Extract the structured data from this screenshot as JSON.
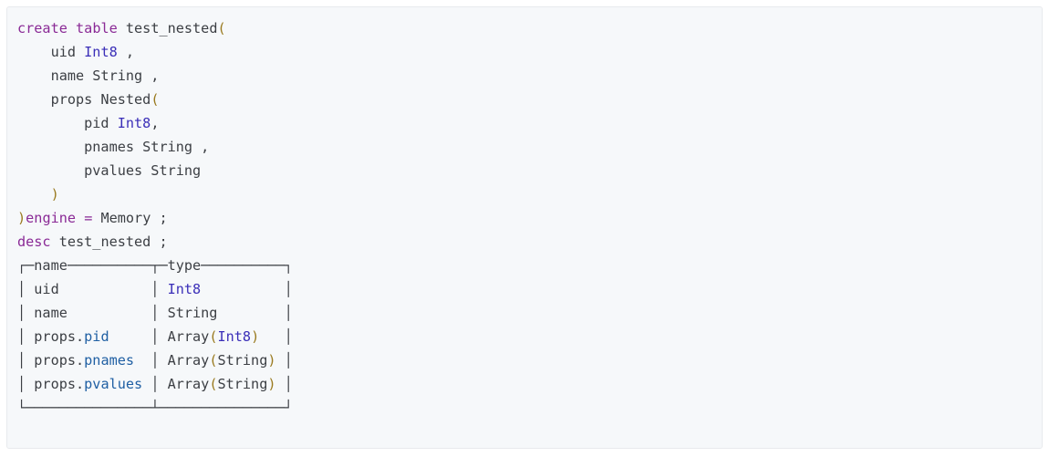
{
  "code_block": {
    "lines": [
      [
        {
          "t": "create",
          "k": "keyword"
        },
        {
          "t": " ",
          "k": "plain"
        },
        {
          "t": "table",
          "k": "keyword"
        },
        {
          "t": " test_nested",
          "k": "plain"
        },
        {
          "t": "(",
          "k": "paren"
        }
      ],
      [
        {
          "t": "    uid ",
          "k": "plain"
        },
        {
          "t": "Int8",
          "k": "type"
        },
        {
          "t": " ,",
          "k": "plain"
        }
      ],
      [
        {
          "t": "    name String ,",
          "k": "plain"
        }
      ],
      [
        {
          "t": "    props Nested",
          "k": "plain"
        },
        {
          "t": "(",
          "k": "paren"
        }
      ],
      [
        {
          "t": "        pid ",
          "k": "plain"
        },
        {
          "t": "Int8",
          "k": "type"
        },
        {
          "t": ",",
          "k": "plain"
        }
      ],
      [
        {
          "t": "        pnames String ,",
          "k": "plain"
        }
      ],
      [
        {
          "t": "        pvalues String",
          "k": "plain"
        }
      ],
      [
        {
          "t": "    ",
          "k": "plain"
        },
        {
          "t": ")",
          "k": "paren"
        }
      ],
      [
        {
          "t": ")",
          "k": "paren"
        },
        {
          "t": "engine",
          "k": "keyword"
        },
        {
          "t": " ",
          "k": "plain"
        },
        {
          "t": "=",
          "k": "keyword"
        },
        {
          "t": " Memory ;",
          "k": "plain"
        }
      ],
      [
        {
          "t": "desc",
          "k": "keyword"
        },
        {
          "t": " test_nested ;",
          "k": "plain"
        }
      ],
      [
        {
          "t": "┌─name──────────┬─type──────────┐",
          "k": "plain"
        }
      ],
      [
        {
          "t": "│ uid           │ ",
          "k": "plain"
        },
        {
          "t": "Int8",
          "k": "type"
        },
        {
          "t": "          │",
          "k": "plain"
        }
      ],
      [
        {
          "t": "│ name          │ String        │",
          "k": "plain"
        }
      ],
      [
        {
          "t": "│ props.",
          "k": "plain"
        },
        {
          "t": "pid",
          "k": "field"
        },
        {
          "t": "     │ Array",
          "k": "plain"
        },
        {
          "t": "(",
          "k": "paren"
        },
        {
          "t": "Int8",
          "k": "type"
        },
        {
          "t": ")",
          "k": "paren"
        },
        {
          "t": "   │",
          "k": "plain"
        }
      ],
      [
        {
          "t": "│ props.",
          "k": "plain"
        },
        {
          "t": "pnames",
          "k": "field"
        },
        {
          "t": "  │ Array",
          "k": "plain"
        },
        {
          "t": "(",
          "k": "paren"
        },
        {
          "t": "String",
          "k": "plain"
        },
        {
          "t": ")",
          "k": "paren"
        },
        {
          "t": " │",
          "k": "plain"
        }
      ],
      [
        {
          "t": "│ props.",
          "k": "plain"
        },
        {
          "t": "pvalues",
          "k": "field"
        },
        {
          "t": " │ Array",
          "k": "plain"
        },
        {
          "t": "(",
          "k": "paren"
        },
        {
          "t": "String",
          "k": "plain"
        },
        {
          "t": ")",
          "k": "paren"
        },
        {
          "t": " │",
          "k": "plain"
        }
      ],
      [
        {
          "t": "└───────────────┴───────────────┘",
          "k": "plain"
        }
      ]
    ]
  },
  "colors": {
    "background": "#f6f8fa",
    "keyword": "#8a2a96",
    "type": "#3b2fb8",
    "field": "#1f5fa3",
    "paren": "#9a7a1f",
    "text": "#3c3f44"
  }
}
